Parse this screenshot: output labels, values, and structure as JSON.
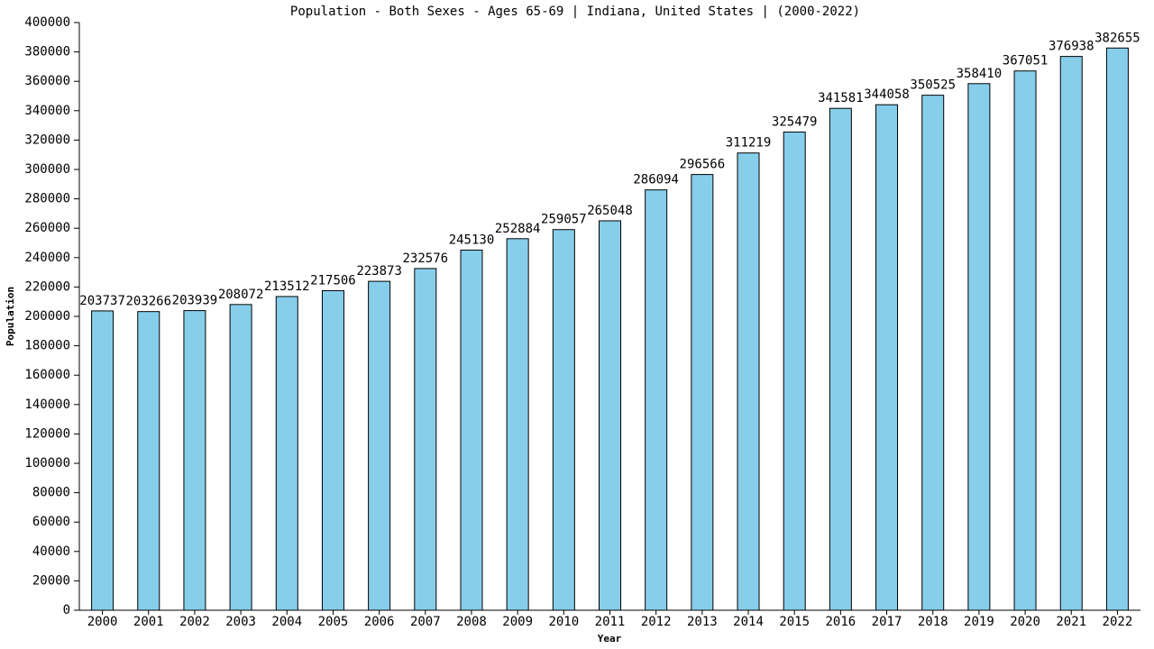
{
  "chart_data": {
    "type": "bar",
    "title": "Population - Both Sexes - Ages 65-69 | Indiana, United States |  (2000-2022)",
    "x_label": "Year",
    "y_label": "Population",
    "categories": [
      "2000",
      "2001",
      "2002",
      "2003",
      "2004",
      "2005",
      "2006",
      "2007",
      "2008",
      "2009",
      "2010",
      "2011",
      "2012",
      "2013",
      "2014",
      "2015",
      "2016",
      "2017",
      "2018",
      "2019",
      "2020",
      "2021",
      "2022"
    ],
    "values": [
      203737,
      203266,
      203939,
      208072,
      213512,
      217506,
      223873,
      232576,
      245130,
      252884,
      259057,
      265048,
      286094,
      296566,
      311219,
      325479,
      341581,
      344058,
      350525,
      358410,
      367051,
      376938,
      382655
    ],
    "color": "#87ceeb",
    "ylim": [
      0,
      400000
    ],
    "yticks": [
      0,
      20000,
      40000,
      60000,
      80000,
      100000,
      120000,
      140000,
      160000,
      180000,
      200000,
      220000,
      240000,
      260000,
      280000,
      300000,
      320000,
      340000,
      360000,
      380000,
      400000
    ],
    "grid": false
  }
}
